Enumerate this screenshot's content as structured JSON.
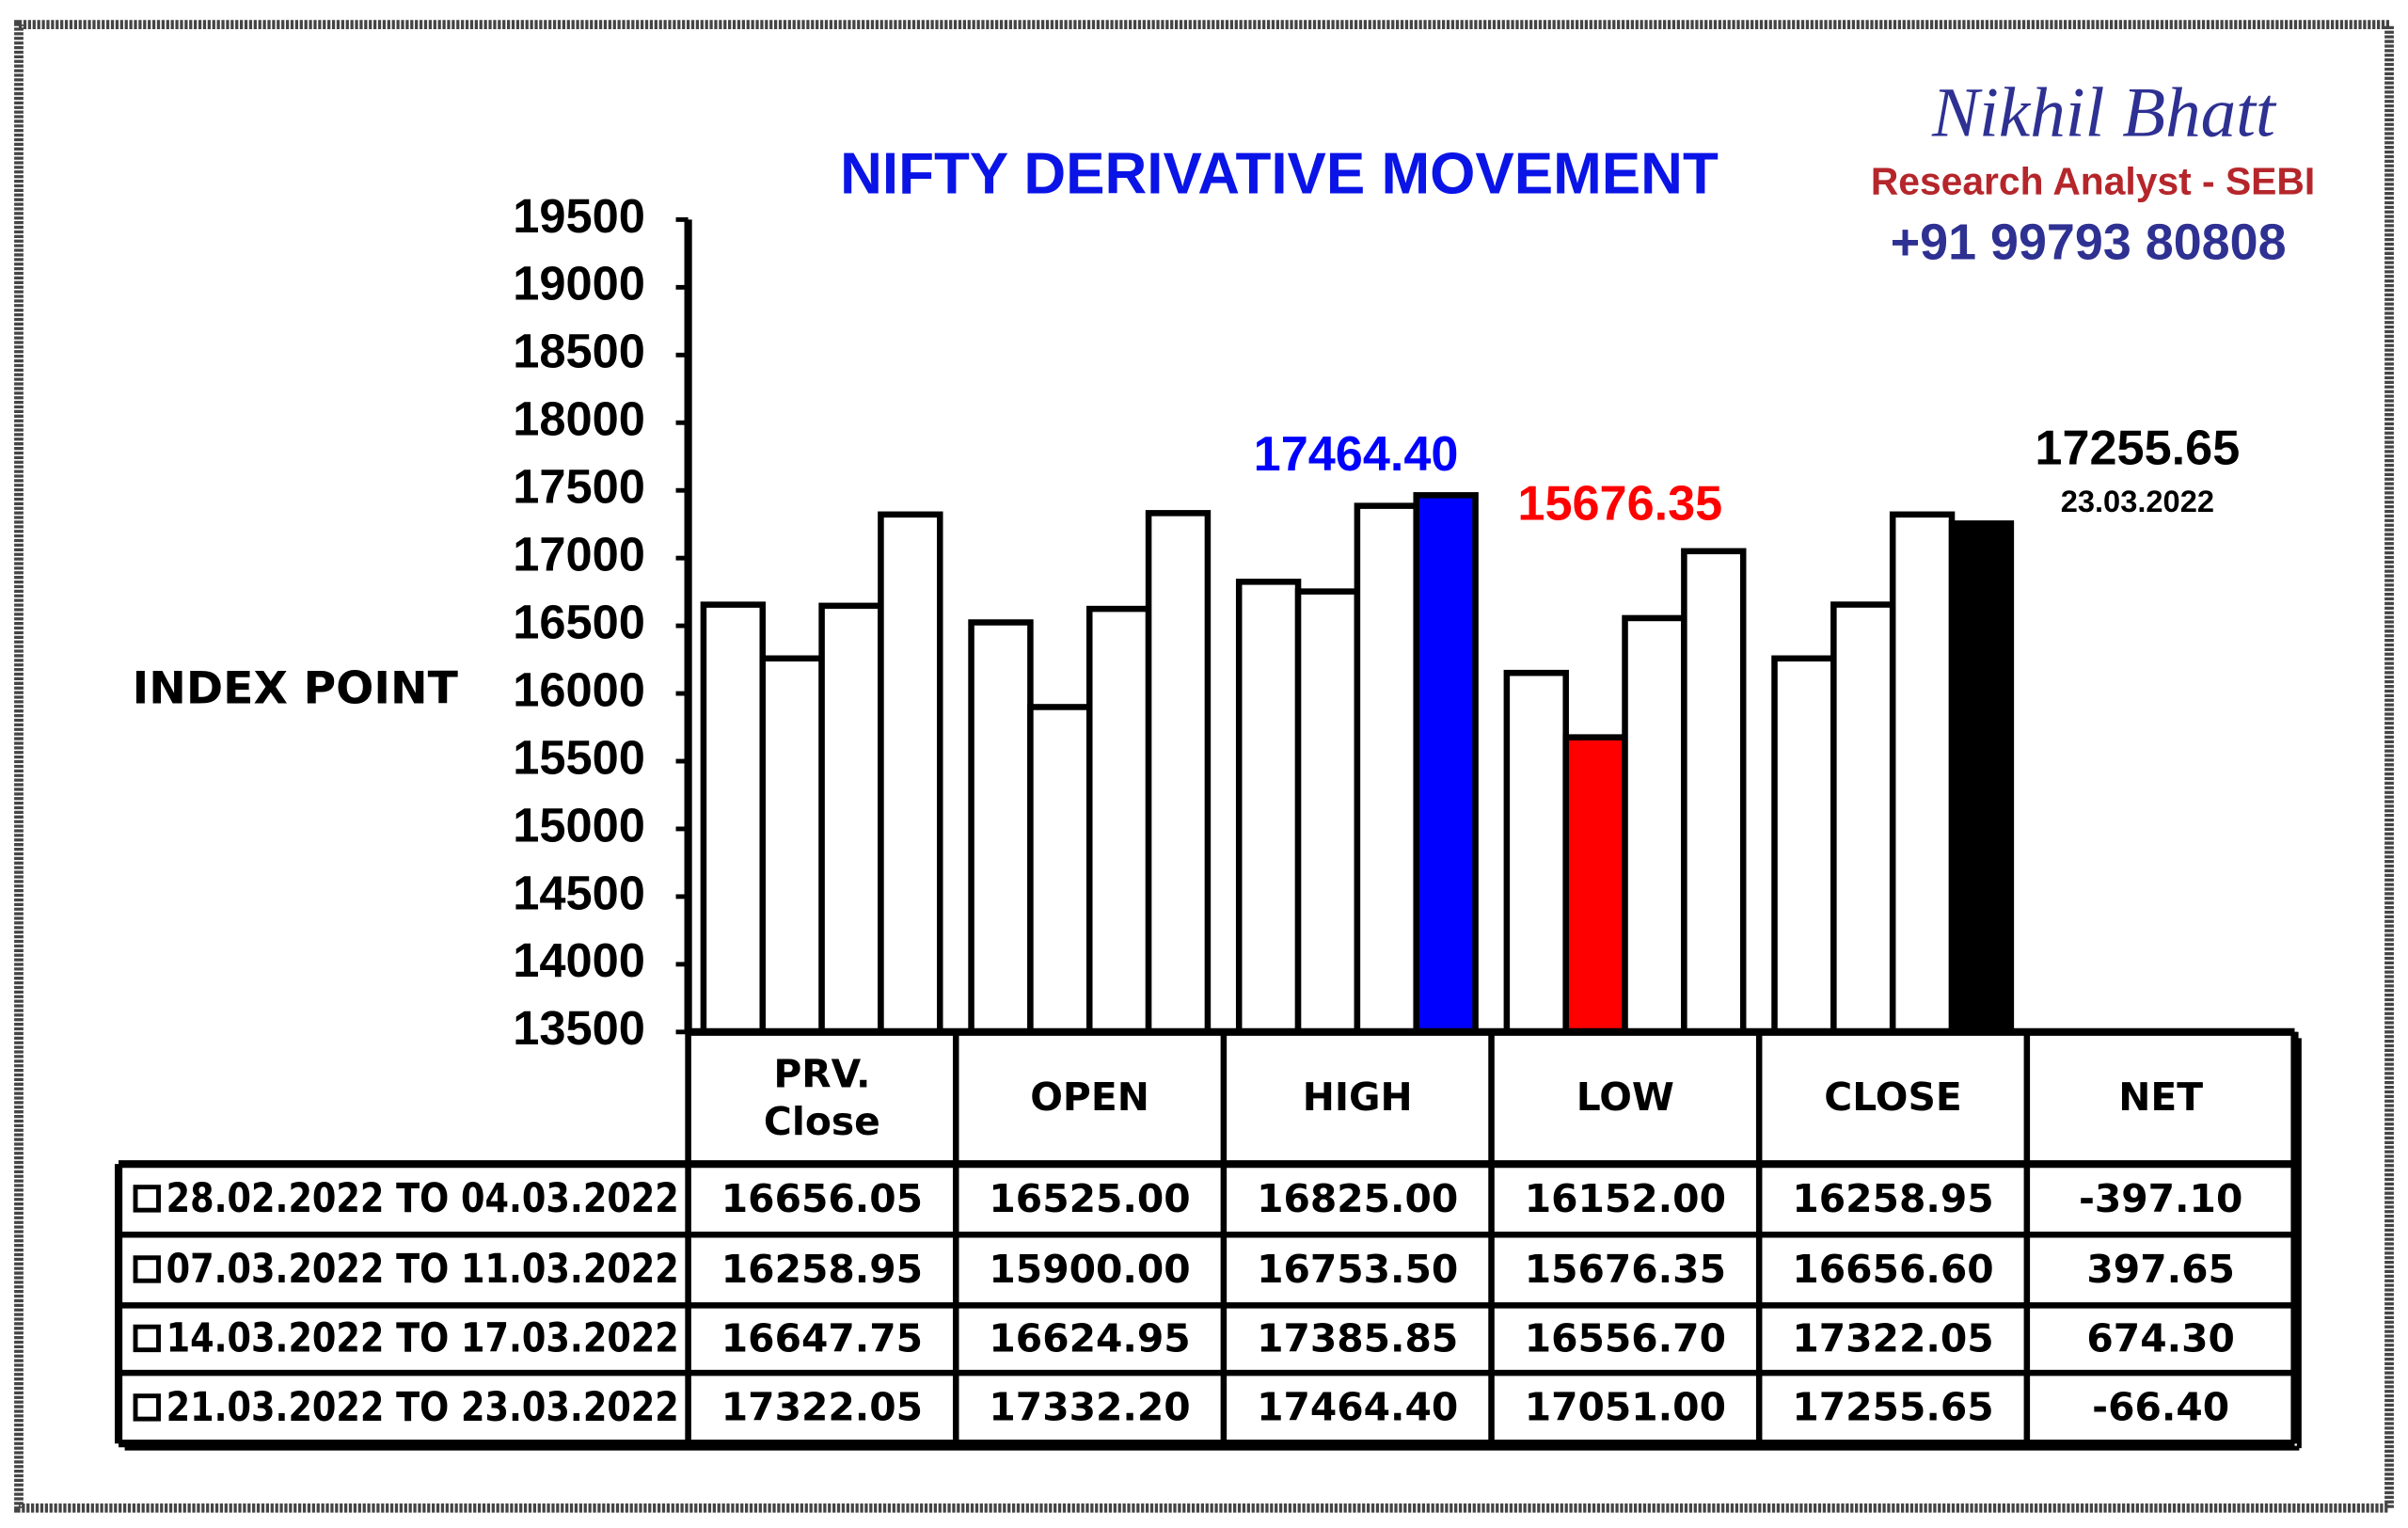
{
  "chart_data": {
    "type": "bar",
    "title": "NIFTY DERIVATIVE MOVEMENT",
    "brand": {
      "name": "Nikhil Bhatt",
      "role": "Research Analyst - SEBI",
      "phone": "+91 99793 80808"
    },
    "y_label": "INDEX POINT",
    "categories": [
      "PRV. Close",
      "OPEN",
      "HIGH",
      "LOW",
      "CLOSE"
    ],
    "net_header": "NET",
    "ylim": [
      13500,
      19500
    ],
    "yticks": [
      13500,
      14000,
      14500,
      15000,
      15500,
      16000,
      16500,
      17000,
      17500,
      18000,
      18500,
      19000,
      19500
    ],
    "series": [
      {
        "name": "28.02.2022 TO 04.03.2022",
        "color": "#ffffff",
        "values": [
          16656.05,
          16525,
          16825,
          16152,
          16258.95
        ],
        "value_labels": [
          "16656.05",
          "16525.00",
          "16825.00",
          "16152.00",
          "16258.95"
        ],
        "net": -397.1,
        "net_label": "-397.10"
      },
      {
        "name": "07.03.2022 TO 11.03.2022",
        "color": "#ffffff",
        "values": [
          16258.95,
          15900,
          16753.5,
          15676.35,
          16656.6
        ],
        "value_labels": [
          "16258.95",
          "15900.00",
          "16753.50",
          "15676.35",
          "16656.60"
        ],
        "net": 397.65,
        "net_label": "397.65"
      },
      {
        "name": "14.03.2022 TO 17.03.2022",
        "color": "#ffffff",
        "values": [
          16647.75,
          16624.95,
          17385.85,
          16556.7,
          17322.05
        ],
        "value_labels": [
          "16647.75",
          "16624.95",
          "17385.85",
          "16556.70",
          "17322.05"
        ],
        "net": 674.3,
        "net_label": "674.30"
      },
      {
        "name": "21.03.2022 TO 23.03.2022",
        "color": "#ffffff",
        "values": [
          17322.05,
          17332.2,
          17464.4,
          17051,
          17255.65
        ],
        "value_labels": [
          "17322.05",
          "17332.20",
          "17464.40",
          "17051.00",
          "17255.65"
        ],
        "net": -66.4,
        "net_label": "-66.40"
      }
    ],
    "highlights": [
      {
        "series": 3,
        "index": 2,
        "color": "#0000ff",
        "label": "17464.40"
      },
      {
        "series": 1,
        "index": 3,
        "color": "#ff0000",
        "label": "15676.35"
      },
      {
        "series": 3,
        "index": 4,
        "color": "#000000",
        "label": "17255.65",
        "sublabel": "23.03.2022"
      }
    ]
  }
}
